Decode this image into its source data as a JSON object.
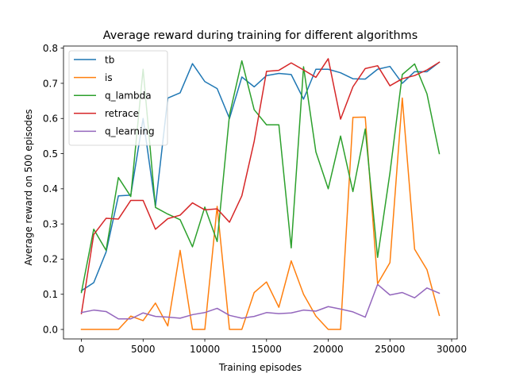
{
  "chart_data": {
    "type": "line",
    "title": "Average reward during training for different algorithms",
    "xlabel": "Training episodes",
    "ylabel": "Average reward on 500 episodes",
    "xlim": [
      -1450,
      30450
    ],
    "ylim": [
      -0.027,
      0.806
    ],
    "xticks": [
      0,
      5000,
      10000,
      15000,
      20000,
      25000,
      30000
    ],
    "yticks": [
      0.0,
      0.1,
      0.2,
      0.3,
      0.4,
      0.5,
      0.6,
      0.7,
      0.8
    ],
    "xtick_labels": [
      "0",
      "5000",
      "10000",
      "15000",
      "20000",
      "25000",
      "30000"
    ],
    "ytick_labels": [
      "0.0",
      "0.1",
      "0.2",
      "0.3",
      "0.4",
      "0.5",
      "0.6",
      "0.7",
      "0.8"
    ],
    "grid": false,
    "legend": "top-left",
    "x": [
      0,
      1000,
      2000,
      3000,
      4000,
      5000,
      6000,
      7000,
      8000,
      9000,
      10000,
      11000,
      12000,
      13000,
      14000,
      15000,
      16000,
      17000,
      18000,
      19000,
      20000,
      21000,
      22000,
      23000,
      24000,
      25000,
      26000,
      27000,
      28000,
      29000
    ],
    "series": [
      {
        "name": "tb",
        "color": "#1f77b4",
        "values": [
          0.11,
          0.133,
          0.22,
          0.38,
          0.382,
          0.6,
          0.35,
          0.658,
          0.673,
          0.756,
          0.705,
          0.685,
          0.6,
          0.718,
          0.69,
          0.722,
          0.728,
          0.725,
          0.655,
          0.74,
          0.74,
          0.73,
          0.713,
          0.712,
          0.74,
          0.748,
          0.7,
          0.733,
          0.733,
          0.76
        ]
      },
      {
        "name": "is",
        "color": "#ff7f0e",
        "values": [
          0.0,
          0.0,
          0.0,
          0.0,
          0.038,
          0.025,
          0.075,
          0.01,
          0.225,
          0.0,
          0.0,
          0.35,
          0.0,
          0.0,
          0.105,
          0.135,
          0.063,
          0.195,
          0.1,
          0.038,
          0.0,
          0.0,
          0.603,
          0.604,
          0.13,
          0.19,
          0.658,
          0.228,
          0.17,
          0.04
        ]
      },
      {
        "name": "q_lambda",
        "color": "#2ca02c",
        "values": [
          0.105,
          0.285,
          0.225,
          0.432,
          0.378,
          0.74,
          0.347,
          0.328,
          0.312,
          0.235,
          0.348,
          0.25,
          0.61,
          0.764,
          0.625,
          0.582,
          0.582,
          0.232,
          0.747,
          0.505,
          0.4,
          0.55,
          0.392,
          0.57,
          0.205,
          0.445,
          0.725,
          0.755,
          0.67,
          0.5
        ]
      },
      {
        "name": "retrace",
        "color": "#d62728",
        "values": [
          0.045,
          0.27,
          0.316,
          0.314,
          0.367,
          0.367,
          0.285,
          0.315,
          0.325,
          0.36,
          0.34,
          0.343,
          0.305,
          0.38,
          0.535,
          0.734,
          0.737,
          0.758,
          0.738,
          0.717,
          0.77,
          0.598,
          0.69,
          0.742,
          0.75,
          0.693,
          0.713,
          0.722,
          0.738,
          0.76
        ]
      },
      {
        "name": "q_learning",
        "color": "#9467bd",
        "values": [
          0.048,
          0.055,
          0.051,
          0.03,
          0.03,
          0.047,
          0.037,
          0.035,
          0.032,
          0.042,
          0.048,
          0.06,
          0.04,
          0.032,
          0.037,
          0.048,
          0.045,
          0.047,
          0.055,
          0.052,
          0.065,
          0.058,
          0.05,
          0.035,
          0.128,
          0.098,
          0.105,
          0.09,
          0.118,
          0.103
        ]
      }
    ]
  }
}
